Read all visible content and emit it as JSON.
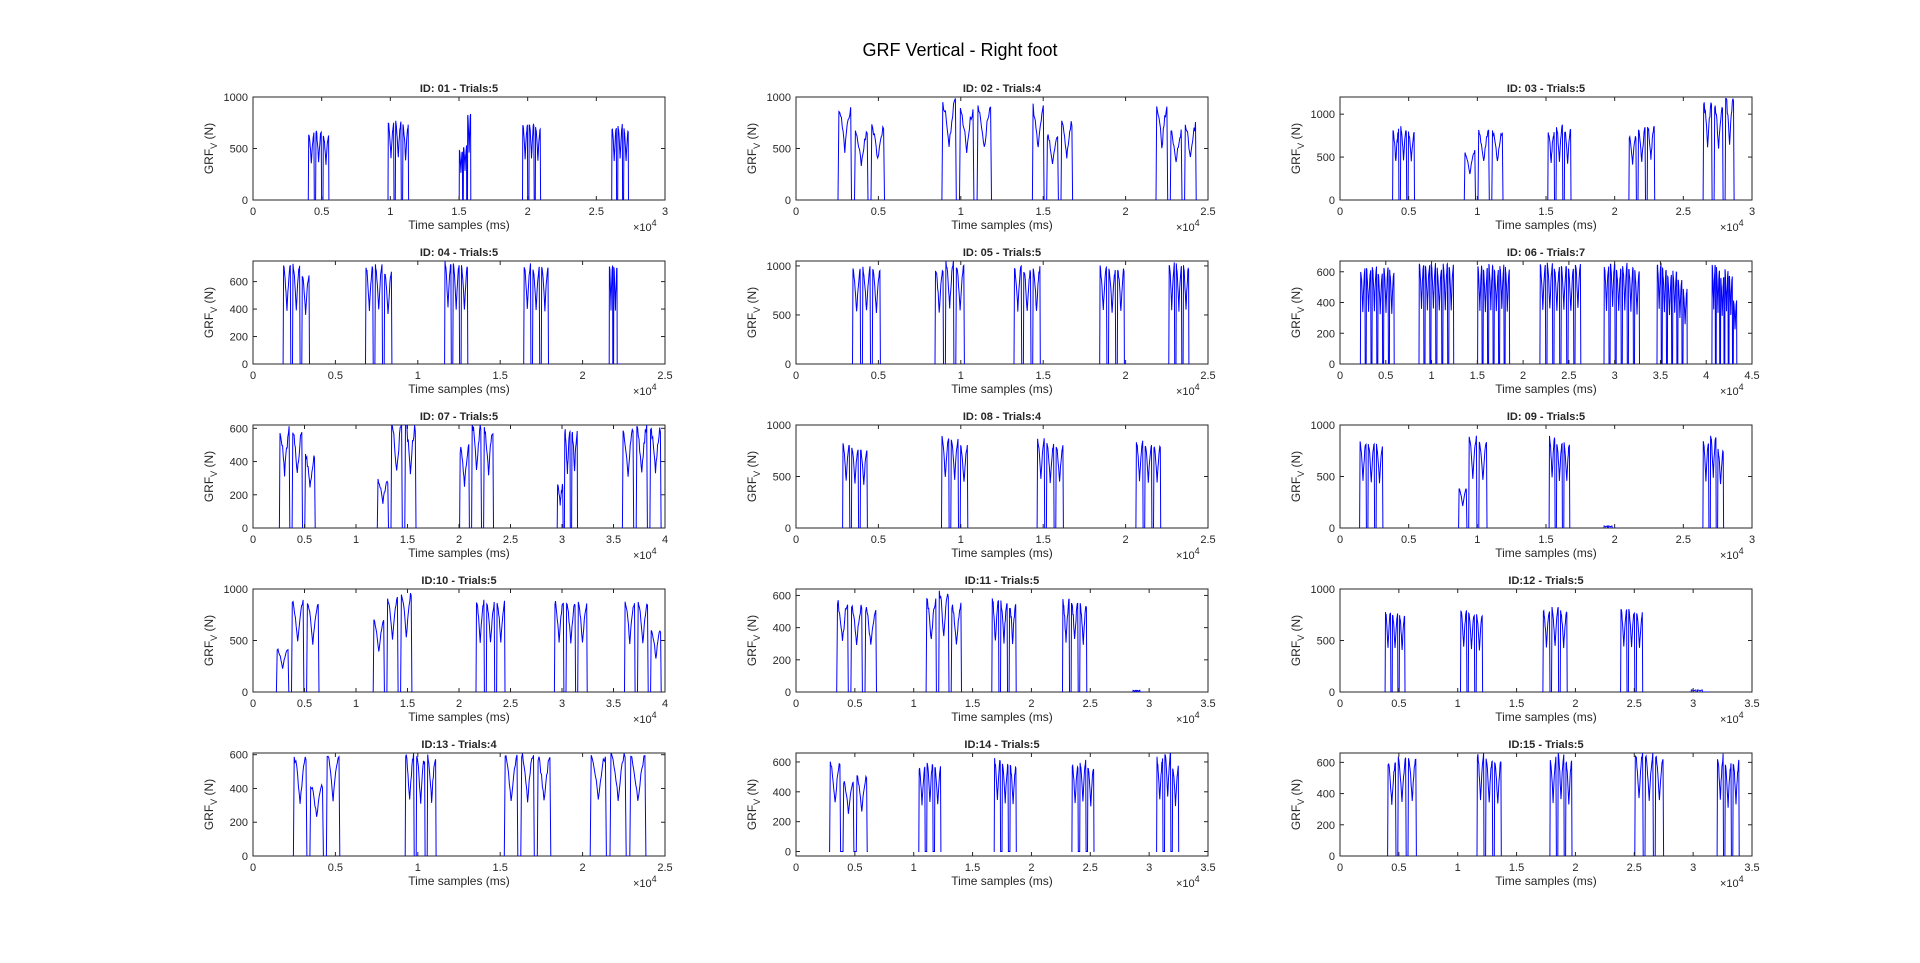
{
  "figure": {
    "title": "GRF Vertical - Right foot"
  },
  "common": {
    "xlabel": "Time samples (ms)",
    "ylabel_main": "GRF",
    "ylabel_sub": "V",
    "ylabel_unit": " (N)",
    "x_exponent_base": "×10",
    "x_exponent_power": "4",
    "line_color": "#0000ff",
    "axis_color": "#262626"
  },
  "chart_data": [
    {
      "type": "line",
      "title": "ID: 01 - Trials:5",
      "xlim": [
        0,
        3
      ],
      "ylim": [
        0,
        1000
      ],
      "xticks": [
        0,
        0.5,
        1,
        1.5,
        2,
        2.5,
        3
      ],
      "xticklabels": [
        "0",
        "0.5",
        "1",
        "1.5",
        "2",
        "2.5",
        "3"
      ],
      "yticks": [
        0,
        500,
        1000
      ],
      "yticklabels": [
        "0",
        "500",
        "1000"
      ],
      "steps": [
        [
          0.4,
          0.56,
          [
            650,
            670,
            630
          ]
        ],
        [
          0.98,
          1.14,
          [
            740,
            760,
            720
          ]
        ],
        [
          1.5,
          1.59,
          [
            480,
            520,
            840
          ]
        ],
        [
          1.96,
          2.1,
          [
            720,
            750,
            700
          ]
        ],
        [
          2.61,
          2.74,
          [
            700,
            720,
            680
          ]
        ]
      ],
      "noise": 0.06
    },
    {
      "type": "line",
      "title": "ID: 02 - Trials:4",
      "xlim": [
        0,
        2.5
      ],
      "ylim": [
        0,
        1000
      ],
      "xticks": [
        0,
        0.5,
        1,
        1.5,
        2,
        2.5
      ],
      "xticklabels": [
        "0",
        "0.5",
        "1",
        "1.5",
        "2",
        "2.5"
      ],
      "yticks": [
        0,
        500,
        1000
      ],
      "yticklabels": [
        "0",
        "500",
        "1000"
      ],
      "steps": [
        [
          0.25,
          0.55,
          [
            880,
            640,
            700
          ]
        ],
        [
          0.88,
          1.2,
          [
            950,
            870,
            900
          ]
        ],
        [
          1.43,
          1.69,
          [
            890,
            620,
            760
          ]
        ],
        [
          2.18,
          2.44,
          [
            910,
            650,
            720
          ]
        ]
      ],
      "noise": 0.12
    },
    {
      "type": "line",
      "title": "ID: 03 - Trials:5",
      "xlim": [
        0,
        3
      ],
      "ylim": [
        0,
        1200
      ],
      "xticks": [
        0,
        0.5,
        1,
        1.5,
        2,
        2.5,
        3
      ],
      "xticklabels": [
        "0",
        "0.5",
        "1",
        "1.5",
        "2",
        "2.5",
        "3"
      ],
      "yticks": [
        0,
        500,
        1000
      ],
      "yticklabels": [
        "0",
        "500",
        "1000"
      ],
      "steps": [
        [
          0.38,
          0.55,
          [
            810,
            830,
            800
          ]
        ],
        [
          0.9,
          1.2,
          [
            560,
            800,
            810
          ]
        ],
        [
          1.51,
          1.69,
          [
            800,
            840,
            810
          ]
        ],
        [
          2.1,
          2.3,
          [
            740,
            820,
            850
          ]
        ],
        [
          2.64,
          2.88,
          [
            1150,
            1100,
            1200
          ]
        ]
      ],
      "noise": 0.1
    },
    {
      "type": "line",
      "title": "ID: 04 - Trials:5",
      "xlim": [
        0,
        2.5
      ],
      "ylim": [
        0,
        750
      ],
      "xticks": [
        0,
        0.5,
        1,
        1.5,
        2,
        2.5
      ],
      "xticklabels": [
        "0",
        "0.5",
        "1",
        "1.5",
        "2",
        "2.5"
      ],
      "yticks": [
        0,
        200,
        400,
        600
      ],
      "yticklabels": [
        "0",
        "200",
        "400",
        "600"
      ],
      "steps": [
        [
          0.18,
          0.35,
          [
            710,
            720,
            650
          ]
        ],
        [
          0.68,
          0.85,
          [
            710,
            720,
            660
          ]
        ],
        [
          1.16,
          1.31,
          [
            740,
            720,
            710
          ]
        ],
        [
          1.64,
          1.8,
          [
            720,
            700,
            710
          ]
        ],
        [
          2.16,
          2.24,
          [
            720,
            700,
            0
          ]
        ]
      ],
      "noise": 0.05
    },
    {
      "type": "line",
      "title": "ID: 05 - Trials:5",
      "xlim": [
        0,
        2.5
      ],
      "ylim": [
        0,
        1050
      ],
      "xticks": [
        0,
        0.5,
        1,
        1.5,
        2,
        2.5
      ],
      "xticklabels": [
        "0",
        "0.5",
        "1",
        "1.5",
        "2",
        "2.5"
      ],
      "yticks": [
        0,
        500,
        1000
      ],
      "yticklabels": [
        "0",
        "500",
        "1000"
      ],
      "steps": [
        [
          0.34,
          0.52,
          [
            950,
            980,
            960
          ]
        ],
        [
          0.84,
          1.03,
          [
            970,
            1040,
            1000
          ]
        ],
        [
          1.32,
          1.49,
          [
            990,
            960,
            980
          ]
        ],
        [
          1.84,
          2.0,
          [
            980,
            950,
            970
          ]
        ],
        [
          2.26,
          2.39,
          [
            1020,
            1000,
            990
          ]
        ]
      ],
      "noise": 0.06
    },
    {
      "type": "line",
      "title": "ID: 06 - Trials:7",
      "xlim": [
        0,
        4.5
      ],
      "ylim": [
        0,
        670
      ],
      "xticks": [
        0,
        0.5,
        1,
        1.5,
        2,
        2.5,
        3,
        3.5,
        4,
        4.5
      ],
      "xticklabels": [
        "0",
        "0.5",
        "1",
        "1.5",
        "2",
        "2.5",
        "3",
        "3.5",
        "4",
        "4.5"
      ],
      "yticks": [
        0,
        200,
        400,
        600
      ],
      "yticklabels": [
        "0",
        "200",
        "400",
        "600"
      ],
      "steps": [
        [
          0.22,
          0.6,
          [
            610,
            620,
            640,
            600,
            620,
            600
          ]
        ],
        [
          0.86,
          1.25,
          [
            650,
            640,
            660,
            620,
            650,
            640
          ]
        ],
        [
          1.5,
          1.86,
          [
            640,
            620,
            650,
            610,
            640,
            620
          ]
        ],
        [
          2.18,
          2.64,
          [
            640,
            650,
            630,
            640,
            620,
            650
          ]
        ],
        [
          2.88,
          3.28,
          [
            640,
            660,
            620,
            650,
            630,
            600
          ]
        ],
        [
          3.46,
          3.8,
          [
            660,
            620,
            580,
            600,
            550,
            480
          ]
        ],
        [
          4.06,
          4.34,
          [
            650,
            620,
            560,
            610,
            580,
            410
          ]
        ]
      ],
      "noise": 0.05
    },
    {
      "type": "line",
      "title": "ID: 07 - Trials:5",
      "xlim": [
        0,
        4
      ],
      "ylim": [
        0,
        620
      ],
      "xticks": [
        0,
        0.5,
        1,
        1.5,
        2,
        2.5,
        3,
        3.5,
        4
      ],
      "xticklabels": [
        "0",
        "0.5",
        "1",
        "1.5",
        "2",
        "2.5",
        "3",
        "3.5",
        "4"
      ],
      "yticks": [
        0,
        200,
        400,
        600
      ],
      "yticklabels": [
        "0",
        "200",
        "400",
        "600"
      ],
      "steps": [
        [
          0.25,
          0.62,
          [
            580,
            570,
            430
          ]
        ],
        [
          1.2,
          1.6,
          [
            280,
            610,
            620
          ]
        ],
        [
          2.0,
          2.35,
          [
            480,
            620,
            600
          ]
        ],
        [
          2.95,
          3.16,
          [
            260,
            580,
            590
          ]
        ],
        [
          3.58,
          3.98,
          [
            590,
            600,
            610
          ]
        ]
      ],
      "noise": 0.12
    },
    {
      "type": "line",
      "title": "ID: 08 - Trials:4",
      "xlim": [
        0,
        2.5
      ],
      "ylim": [
        0,
        1000
      ],
      "xticks": [
        0,
        0.5,
        1,
        1.5,
        2,
        2.5
      ],
      "xticklabels": [
        "0",
        "0.5",
        "1",
        "1.5",
        "2",
        "2.5"
      ],
      "yticks": [
        0,
        500,
        1000
      ],
      "yticklabels": [
        "0",
        "500",
        "1000"
      ],
      "steps": [
        [
          0.28,
          0.44,
          [
            820,
            780,
            760
          ]
        ],
        [
          0.88,
          1.05,
          [
            880,
            850,
            800
          ]
        ],
        [
          1.46,
          1.63,
          [
            870,
            810,
            800
          ]
        ],
        [
          2.06,
          2.22,
          [
            840,
            810,
            800
          ]
        ]
      ],
      "noise": 0.05
    },
    {
      "type": "line",
      "title": "ID: 09 - Trials:5",
      "xlim": [
        0,
        3
      ],
      "ylim": [
        0,
        1000
      ],
      "xticks": [
        0,
        0.5,
        1,
        1.5,
        2,
        2.5,
        3
      ],
      "xticklabels": [
        "0",
        "0.5",
        "1",
        "1.5",
        "2",
        "2.5",
        "3"
      ],
      "yticks": [
        0,
        500,
        1000
      ],
      "yticklabels": [
        "0",
        "500",
        "1000"
      ],
      "steps": [
        [
          0.14,
          0.32,
          [
            830,
            820,
            800
          ]
        ],
        [
          0.86,
          1.08,
          [
            380,
            880,
            840
          ]
        ],
        [
          1.52,
          1.68,
          [
            880,
            830,
            820
          ]
        ],
        [
          1.92,
          2.02,
          [
            20,
            20,
            0
          ]
        ],
        [
          2.64,
          2.8,
          [
            840,
            900,
            760
          ]
        ]
      ],
      "noise": 0.05
    },
    {
      "type": "line",
      "title": "ID:10 - Trials:5",
      "xlim": [
        0,
        4
      ],
      "ylim": [
        0,
        1000
      ],
      "xticks": [
        0,
        0.5,
        1,
        1.5,
        2,
        2.5,
        3,
        3.5,
        4
      ],
      "xticklabels": [
        "0",
        "0.5",
        "1",
        "1.5",
        "2",
        "2.5",
        "3",
        "3.5",
        "4"
      ],
      "yticks": [
        0,
        500,
        1000
      ],
      "yticklabels": [
        "0",
        "500",
        "1000"
      ],
      "steps": [
        [
          0.22,
          0.66,
          [
            420,
            880,
            860
          ]
        ],
        [
          1.16,
          1.56,
          [
            700,
            900,
            960
          ]
        ],
        [
          2.16,
          2.46,
          [
            880,
            860,
            870
          ]
        ],
        [
          2.92,
          3.26,
          [
            880,
            860,
            860
          ]
        ],
        [
          3.6,
          3.98,
          [
            870,
            860,
            600
          ]
        ]
      ],
      "noise": 0.06
    },
    {
      "type": "line",
      "title": "ID:11 - Trials:5",
      "xlim": [
        0,
        3.5
      ],
      "ylim": [
        0,
        640
      ],
      "xticks": [
        0,
        0.5,
        1,
        1.5,
        2,
        2.5,
        3,
        3.5
      ],
      "xticklabels": [
        "0",
        "0.5",
        "1",
        "1.5",
        "2",
        "2.5",
        "3",
        "3.5"
      ],
      "yticks": [
        0,
        200,
        400,
        600
      ],
      "yticklabels": [
        "0",
        "200",
        "400",
        "600"
      ],
      "steps": [
        [
          0.34,
          0.7,
          [
            560,
            540,
            520
          ]
        ],
        [
          1.1,
          1.42,
          [
            580,
            620,
            540
          ]
        ],
        [
          1.66,
          1.88,
          [
            570,
            560,
            550
          ]
        ],
        [
          2.26,
          2.48,
          [
            560,
            570,
            540
          ]
        ],
        [
          2.86,
          2.96,
          [
            10,
            10,
            0
          ]
        ]
      ],
      "noise": 0.1
    },
    {
      "type": "line",
      "title": "ID:12 - Trials:5",
      "xlim": [
        0,
        3.5
      ],
      "ylim": [
        0,
        1000
      ],
      "xticks": [
        0,
        0.5,
        1,
        1.5,
        2,
        2.5,
        3,
        3.5
      ],
      "xticklabels": [
        "0",
        "0.5",
        "1",
        "1.5",
        "2",
        "2.5",
        "3",
        "3.5"
      ],
      "yticks": [
        0,
        500,
        1000
      ],
      "yticklabels": [
        "0",
        "500",
        "1000"
      ],
      "steps": [
        [
          0.38,
          0.56,
          [
            780,
            760,
            740
          ]
        ],
        [
          1.02,
          1.22,
          [
            790,
            760,
            740
          ]
        ],
        [
          1.72,
          1.94,
          [
            800,
            810,
            790
          ]
        ],
        [
          2.38,
          2.58,
          [
            800,
            790,
            760
          ]
        ],
        [
          2.98,
          3.14,
          [
            20,
            20,
            0
          ]
        ]
      ],
      "noise": 0.05
    },
    {
      "type": "line",
      "title": "ID:13 - Trials:4",
      "xlim": [
        0,
        2.5
      ],
      "ylim": [
        0,
        610
      ],
      "xticks": [
        0,
        0.5,
        1,
        1.5,
        2,
        2.5
      ],
      "xticklabels": [
        "0",
        "0.5",
        "1",
        "1.5",
        "2",
        "2.5"
      ],
      "yticks": [
        0,
        200,
        400,
        600
      ],
      "yticklabels": [
        "0",
        "200",
        "400",
        "600"
      ],
      "steps": [
        [
          0.24,
          0.54,
          [
            580,
            420,
            600
          ]
        ],
        [
          0.92,
          1.12,
          [
            600,
            580,
            590
          ]
        ],
        [
          1.52,
          1.82,
          [
            590,
            600,
            580
          ]
        ],
        [
          2.04,
          2.4,
          [
            600,
            610,
            590
          ]
        ]
      ],
      "noise": 0.08
    },
    {
      "type": "line",
      "title": "ID:14 - Trials:5",
      "xlim": [
        0,
        3.5
      ],
      "ylim": [
        -30,
        660
      ],
      "xticks": [
        0,
        0.5,
        1,
        1.5,
        2,
        2.5,
        3,
        3.5
      ],
      "xticklabels": [
        "0",
        "0.5",
        "1",
        "1.5",
        "2",
        "2.5",
        "3",
        "3.5"
      ],
      "yticks": [
        0,
        200,
        400,
        600
      ],
      "yticklabels": [
        "0",
        "200",
        "400",
        "600"
      ],
      "steps": [
        [
          0.28,
          0.62,
          [
            590,
            470,
            500
          ]
        ],
        [
          1.04,
          1.24,
          [
            560,
            590,
            560
          ]
        ],
        [
          1.68,
          1.88,
          [
            610,
            590,
            570
          ]
        ],
        [
          2.34,
          2.54,
          [
            580,
            600,
            560
          ]
        ],
        [
          3.06,
          3.26,
          [
            620,
            660,
            560
          ]
        ]
      ],
      "noise": 0.06
    },
    {
      "type": "line",
      "title": "ID:15 - Trials:5",
      "xlim": [
        0,
        3.5
      ],
      "ylim": [
        0,
        660
      ],
      "xticks": [
        0,
        0.5,
        1,
        1.5,
        2,
        2.5,
        3,
        3.5
      ],
      "xticklabels": [
        "0",
        "0.5",
        "1",
        "1.5",
        "2",
        "2.5",
        "3",
        "3.5"
      ],
      "yticks": [
        0,
        200,
        400,
        600
      ],
      "yticklabels": [
        "0",
        "200",
        "400",
        "600"
      ],
      "steps": [
        [
          0.4,
          0.66,
          [
            600,
            620,
            630
          ]
        ],
        [
          1.16,
          1.38,
          [
            650,
            620,
            600
          ]
        ],
        [
          1.78,
          1.98,
          [
            620,
            650,
            600
          ]
        ],
        [
          2.5,
          2.76,
          [
            660,
            650,
            640
          ]
        ],
        [
          3.2,
          3.4,
          [
            640,
            580,
            600
          ]
        ]
      ],
      "noise": 0.06
    }
  ]
}
